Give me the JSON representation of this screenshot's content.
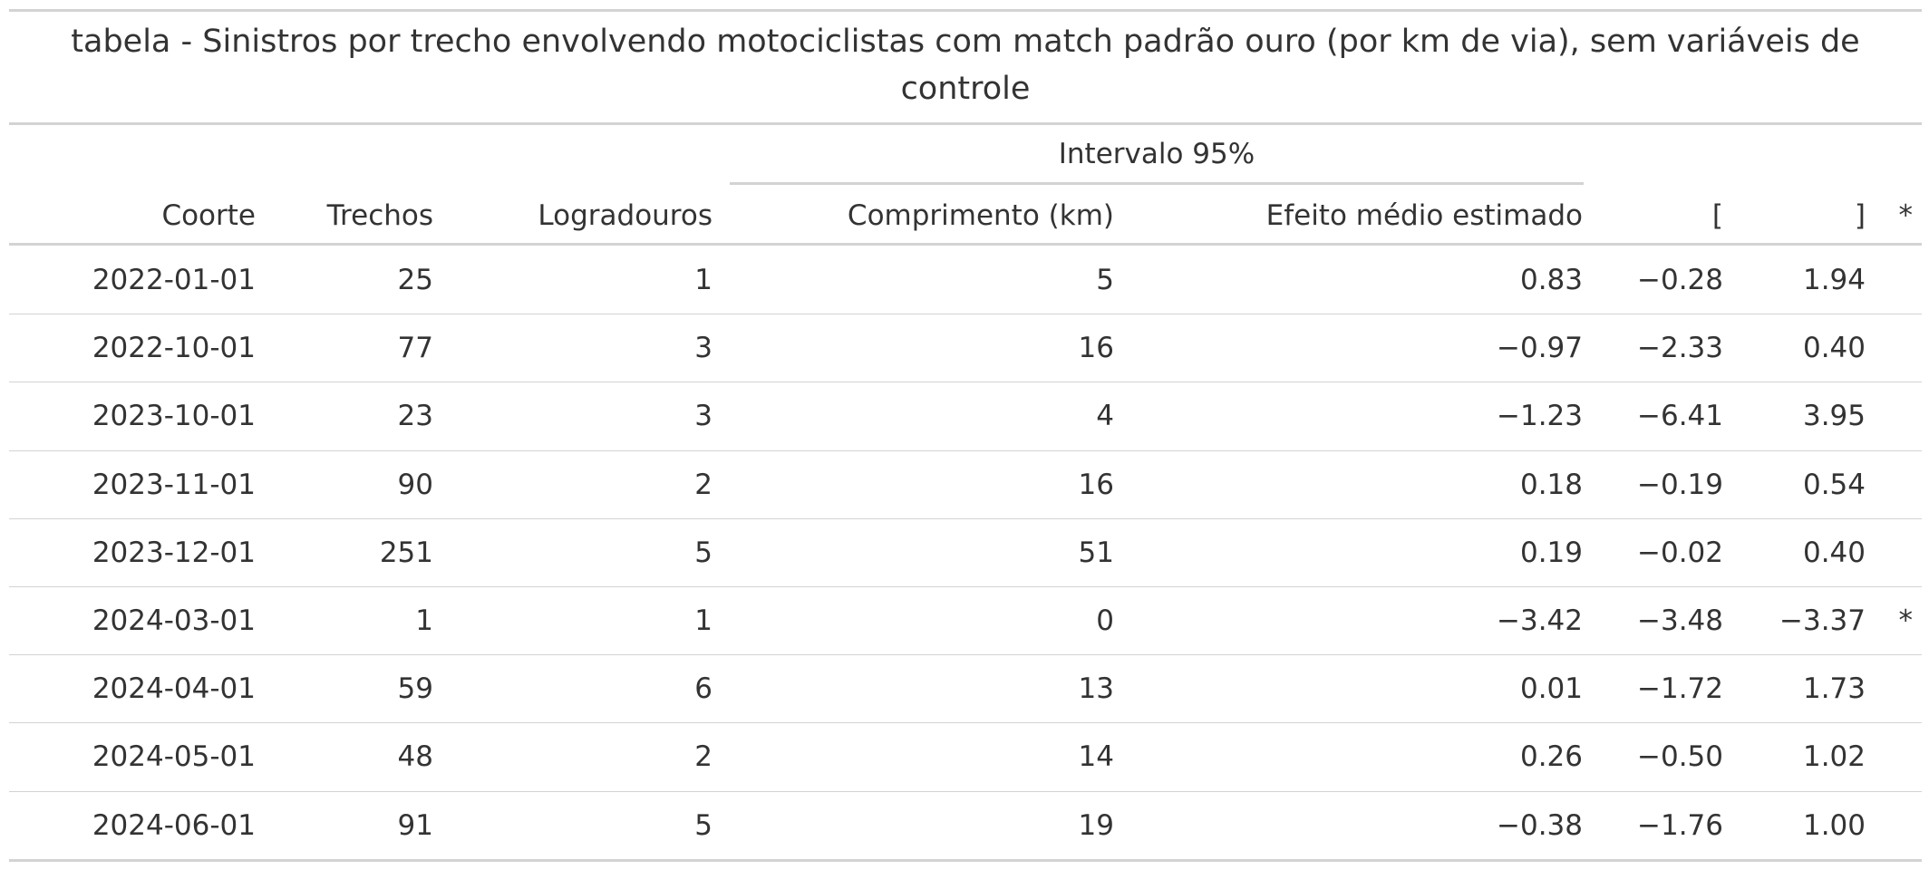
{
  "table": {
    "title": "tabela - Sinistros por trecho envolvendo motociclistas com match padrão ouro (por km de via), sem variáveis de controle",
    "spanner": "Intervalo 95%",
    "columns": [
      "Coorte",
      "Trechos",
      "Logradouros",
      "Comprimento (km)",
      "Efeito médio estimado",
      "[",
      "]",
      "*"
    ],
    "rows": [
      [
        "2022-01-01",
        "25",
        "1",
        "5",
        "0.83",
        "−0.28",
        "1.94",
        ""
      ],
      [
        "2022-10-01",
        "77",
        "3",
        "16",
        "−0.97",
        "−2.33",
        "0.40",
        ""
      ],
      [
        "2023-10-01",
        "23",
        "3",
        "4",
        "−1.23",
        "−6.41",
        "3.95",
        ""
      ],
      [
        "2023-11-01",
        "90",
        "2",
        "16",
        "0.18",
        "−0.19",
        "0.54",
        ""
      ],
      [
        "2023-12-01",
        "251",
        "5",
        "51",
        "0.19",
        "−0.02",
        "0.40",
        ""
      ],
      [
        "2024-03-01",
        "1",
        "1",
        "0",
        "−3.42",
        "−3.48",
        "−3.37",
        "*"
      ],
      [
        "2024-04-01",
        "59",
        "6",
        "13",
        "0.01",
        "−1.72",
        "1.73",
        ""
      ],
      [
        "2024-05-01",
        "48",
        "2",
        "14",
        "0.26",
        "−0.50",
        "1.02",
        ""
      ],
      [
        "2024-06-01",
        "91",
        "5",
        "19",
        "−0.38",
        "−1.76",
        "1.00",
        ""
      ]
    ]
  }
}
